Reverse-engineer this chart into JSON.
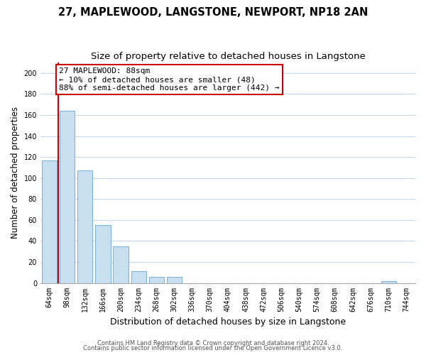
{
  "title": "27, MAPLEWOOD, LANGSTONE, NEWPORT, NP18 2AN",
  "subtitle": "Size of property relative to detached houses in Langstone",
  "xlabel": "Distribution of detached houses by size in Langstone",
  "ylabel": "Number of detached properties",
  "bar_labels": [
    "64sqm",
    "98sqm",
    "132sqm",
    "166sqm",
    "200sqm",
    "234sqm",
    "268sqm",
    "302sqm",
    "336sqm",
    "370sqm",
    "404sqm",
    "438sqm",
    "472sqm",
    "506sqm",
    "540sqm",
    "574sqm",
    "608sqm",
    "642sqm",
    "676sqm",
    "710sqm",
    "744sqm"
  ],
  "bar_values": [
    117,
    164,
    107,
    55,
    35,
    11,
    6,
    6,
    0,
    0,
    0,
    0,
    0,
    0,
    0,
    0,
    0,
    0,
    0,
    2,
    0
  ],
  "bar_color": "#c8dff0",
  "bar_edge_color": "#7fb3d9",
  "red_line_color": "#cc0000",
  "annotation_title": "27 MAPLEWOOD: 88sqm",
  "annotation_line1": "← 10% of detached houses are smaller (48)",
  "annotation_line2": "88% of semi-detached houses are larger (442) →",
  "annotation_box_color": "#ffffff",
  "annotation_box_edge": "#cc0000",
  "ylim": [
    0,
    210
  ],
  "yticks": [
    0,
    20,
    40,
    60,
    80,
    100,
    120,
    140,
    160,
    180,
    200
  ],
  "footer1": "Contains HM Land Registry data © Crown copyright and database right 2024.",
  "footer2": "Contains public sector information licensed under the Open Government Licence v3.0.",
  "bg_color": "#ffffff",
  "grid_color": "#c5d8ea",
  "title_fontsize": 10.5,
  "subtitle_fontsize": 9.5,
  "xlabel_fontsize": 9,
  "ylabel_fontsize": 8.5,
  "tick_fontsize": 7,
  "annotation_fontsize": 8,
  "footer_fontsize": 6
}
